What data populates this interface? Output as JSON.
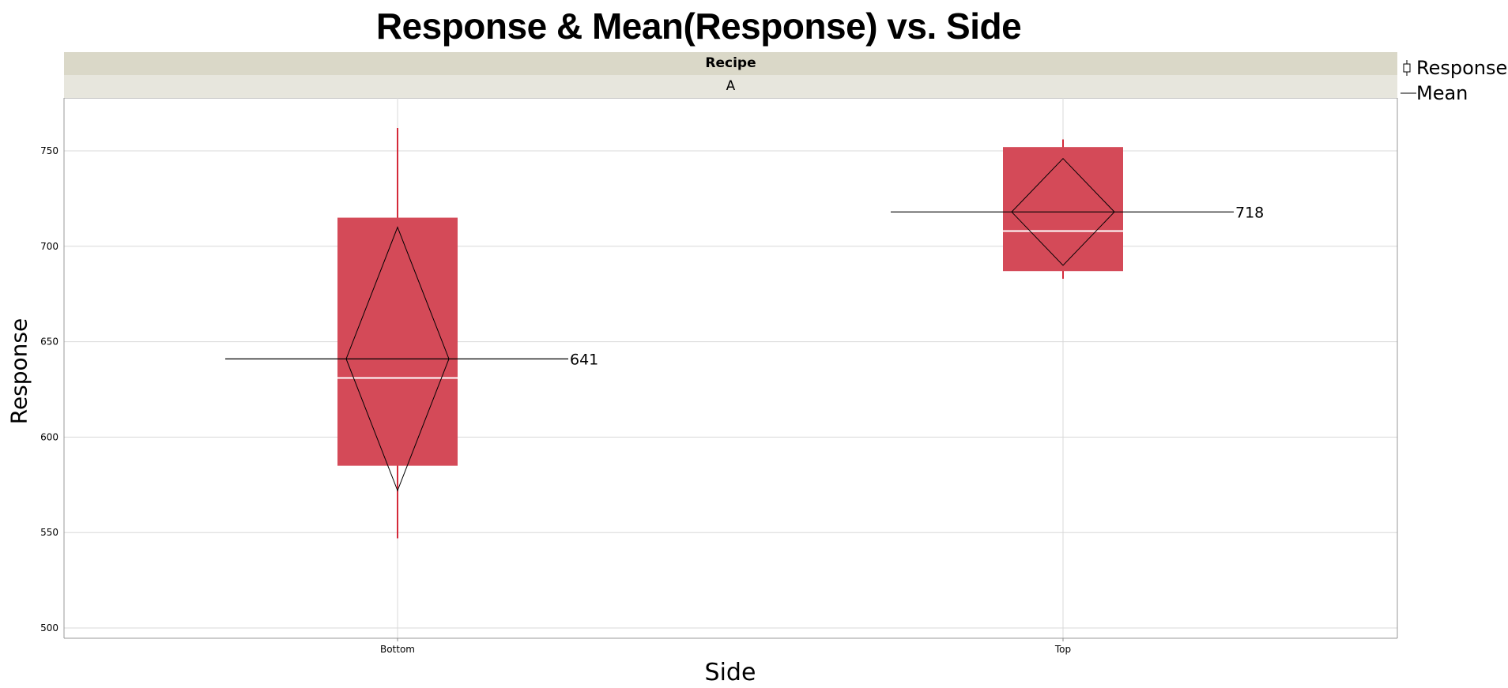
{
  "chart_data": {
    "type": "box",
    "title": "Response & Mean(Response) vs. Side",
    "xlabel": "Side",
    "ylabel": "Response",
    "group_header": "Recipe",
    "group_value": "A",
    "categories": [
      "Bottom",
      "Top"
    ],
    "ylim": [
      495,
      778
    ],
    "yticks": [
      500,
      550,
      600,
      650,
      700,
      750
    ],
    "grid": true,
    "legend": {
      "position": "right",
      "entries": [
        "Response",
        "Mean"
      ]
    },
    "boxes": [
      {
        "category": "Bottom",
        "min": 547,
        "q1": 585,
        "median": 631,
        "q3": 715,
        "max": 762,
        "mean": 641,
        "mean_ci": [
          572,
          710
        ],
        "mean_label": "641"
      },
      {
        "category": "Top",
        "min": 683,
        "q1": 687,
        "median": 708,
        "q3": 752,
        "max": 756,
        "mean": 718,
        "mean_ci": [
          690,
          746
        ],
        "mean_label": "718"
      }
    ],
    "colors": {
      "box": "#d44a58",
      "whisker": "#d42a3a",
      "median": "#ffffff",
      "mean": "#000000",
      "grid": "#d8d8d8"
    }
  }
}
